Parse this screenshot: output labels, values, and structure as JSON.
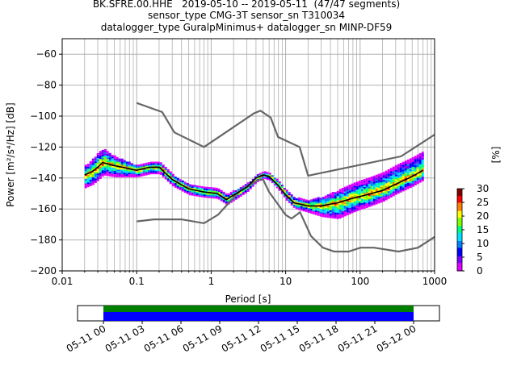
{
  "title_lines": [
    "BK.SFRE.00.HHE   2019-05-10 -- 2019-05-11  (47/47 segments)",
    "sensor_type CMG-3T sensor_sn T310034",
    "datalogger_type GuralpMinimus+ datalogger_sn MINP-DF59"
  ],
  "chart_data": [
    {
      "type": "heatmap",
      "xlabel": "Period [s]",
      "ylabel": "Power [m²/s⁴/Hz] [dB]",
      "xscale": "log",
      "xlim": [
        0.01,
        1000
      ],
      "ylim": [
        -200,
        -50
      ],
      "x_ticks": [
        0.01,
        0.1,
        1,
        10,
        100,
        1000
      ],
      "x_tick_labels": [
        "0.01",
        "0.1",
        "1",
        "10",
        "100",
        "1000"
      ],
      "y_ticks": [
        -200,
        -180,
        -160,
        -140,
        -120,
        -100,
        -80,
        -60
      ],
      "y_tick_labels": [
        "−200",
        "−180",
        "−160",
        "−140",
        "−120",
        "−100",
        "−80",
        "−60"
      ],
      "grid": true,
      "noise_models": {
        "high": {
          "periods": [
            0.1,
            0.22,
            0.32,
            0.8,
            3.8,
            4.6,
            6.3,
            7.9,
            15.4,
            20,
            354.8,
            1000
          ],
          "power": [
            -91.5,
            -97.4,
            -110.5,
            -120,
            -98,
            -96.5,
            -101,
            -113.5,
            -120,
            -138.5,
            -126,
            -112
          ]
        },
        "low": {
          "periods": [
            0.1,
            0.17,
            0.4,
            0.8,
            1.24,
            2.4,
            4.3,
            5,
            6,
            10,
            12,
            15.6,
            21.9,
            31.6,
            45,
            70,
            101,
            154,
            328,
            600,
            1000
          ],
          "power": [
            -168,
            -166.7,
            -166.7,
            -169.2,
            -163.7,
            -148.6,
            -141.1,
            -141.1,
            -149,
            -163.8,
            -166.2,
            -162.1,
            -177.5,
            -185,
            -187.5,
            -187.5,
            -185,
            -185,
            -187.5,
            -185,
            -178
          ]
        }
      },
      "mean_curve": {
        "periods": [
          0.02,
          0.025,
          0.03,
          0.035,
          0.05,
          0.08,
          0.1,
          0.15,
          0.2,
          0.3,
          0.5,
          0.8,
          1.2,
          1.6,
          2,
          3,
          4,
          5,
          6,
          8,
          10,
          13,
          20,
          30,
          50,
          80,
          120,
          200,
          300,
          500,
          700
        ],
        "power": [
          -138,
          -136,
          -133,
          -130,
          -132,
          -134,
          -135,
          -133,
          -133,
          -141,
          -147,
          -149,
          -150,
          -154,
          -151,
          -146,
          -140,
          -138,
          -139,
          -145,
          -151,
          -156,
          -158,
          -158,
          -156,
          -153,
          -151,
          -148,
          -144,
          -139,
          -135
        ]
      },
      "histogram_spread_db": {
        "periods": [
          0.02,
          0.03,
          0.05,
          0.1,
          0.3,
          1,
          2,
          5,
          10,
          20,
          50,
          100,
          300,
          700
        ],
        "lower": [
          -8,
          -8,
          -7,
          -4,
          -4,
          -3,
          -3,
          -2,
          -3,
          -4,
          -10,
          -8,
          -6,
          -6
        ],
        "upper": [
          6,
          10,
          6,
          3,
          3,
          3,
          3,
          2,
          3,
          4,
          8,
          10,
          12,
          12
        ]
      },
      "colorbar": {
        "label": "[%]",
        "min": 0,
        "max": 30,
        "ticks": [
          0,
          5,
          10,
          15,
          20,
          25,
          30
        ],
        "tick_labels": [
          "0",
          "5",
          "10",
          "15",
          "20",
          "25",
          "30"
        ],
        "colors": [
          "#ffffff",
          "#e000ff",
          "#7a00ff",
          "#0000ff",
          "#0080ff",
          "#00e0ff",
          "#00ff80",
          "#80ff00",
          "#ffff00",
          "#ff8000",
          "#ff0000",
          "#800000"
        ]
      },
      "colors": {
        "noise_model": "#666666",
        "mean": "#000000",
        "grid": "#b0b0b0"
      }
    },
    {
      "type": "bar",
      "description_free": true,
      "x_tick_labels": [
        "05-11 00",
        "05-11 03",
        "05-11 06",
        "05-11 09",
        "05-11 12",
        "05-11 15",
        "05-11 18",
        "05-11 21",
        "05-12 00"
      ],
      "xlim_hours": [
        -2,
        26
      ],
      "coverage_hours": [
        0,
        24
      ],
      "colors": {
        "upper": "#008000",
        "lower": "#0000ff"
      }
    }
  ]
}
